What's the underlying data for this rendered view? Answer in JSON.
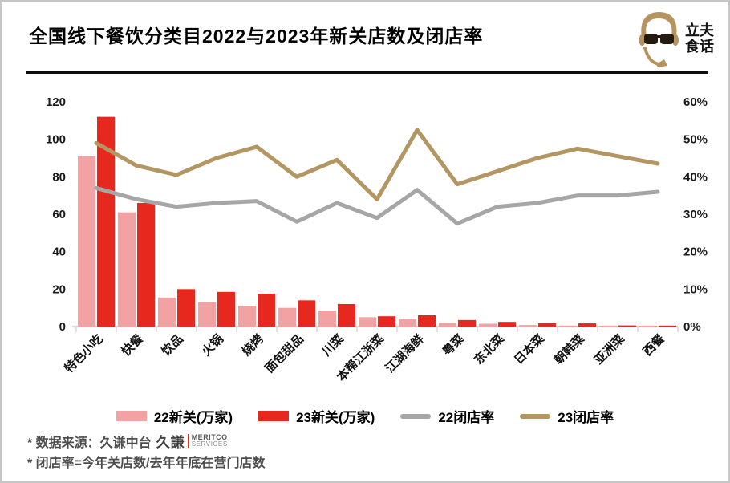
{
  "header": {
    "title": "全国线下餐饮分类目2022与2023年新关店数及闭店率",
    "logo": {
      "line1": "立夫",
      "line2": "食话",
      "color": "#b5945f"
    }
  },
  "chart_data": {
    "type": "bar+line combo",
    "title": "全国线下餐饮分类目2022与2023年新关店数及闭店率",
    "grid": false,
    "legend_position": "bottom",
    "categories": [
      "特色小吃",
      "快餐",
      "饮品",
      "火锅",
      "烧烤",
      "面包甜品",
      "川菜",
      "本帮江浙菜",
      "江湖海鲜",
      "粤菜",
      "东北菜",
      "日本菜",
      "朝韩菜",
      "亚洲菜",
      "西餐"
    ],
    "series": [
      {
        "name": "22新关(万家)",
        "type": "bar",
        "axis": "left",
        "color": "#f2a2a2",
        "values": [
          91,
          61,
          15.5,
          13,
          11,
          10,
          8.5,
          5,
          4,
          2,
          1.5,
          0.8,
          0.5,
          0.3,
          0.2
        ]
      },
      {
        "name": "23新关(万家)",
        "type": "bar",
        "axis": "left",
        "color": "#e6281e",
        "values": [
          112,
          66,
          20,
          18.5,
          17.5,
          14,
          12,
          5.5,
          6,
          3.5,
          2.5,
          1.8,
          1.7,
          0.6,
          0.5
        ]
      },
      {
        "name": "22闭店率",
        "type": "line",
        "axis": "right",
        "color": "#a6a6a6",
        "values": [
          37,
          34,
          32,
          33,
          33.5,
          28,
          33,
          29,
          36.5,
          27.5,
          32,
          33,
          35,
          35,
          36
        ]
      },
      {
        "name": "23闭店率",
        "type": "line",
        "axis": "right",
        "color": "#b39662",
        "values": [
          49,
          43,
          40.5,
          45,
          48,
          40,
          44.5,
          34,
          52.5,
          38,
          41.5,
          45,
          47.5,
          45.5,
          43.5
        ]
      }
    ],
    "left_axis": {
      "min": 0,
      "max": 120,
      "step": 20,
      "ticks": [
        "0",
        "20",
        "40",
        "60",
        "80",
        "100",
        "120"
      ]
    },
    "right_axis": {
      "min": 0,
      "max": 60,
      "step": 10,
      "ticks": [
        "0%",
        "10%",
        "20%",
        "30%",
        "40%",
        "50%",
        "60%"
      ]
    },
    "axis_color": "#d9d9d9",
    "tick_text_color": "#1a1a1a"
  },
  "footer": {
    "line1_prefix": "* 数据来源：久谦中台",
    "meritco": {
      "cjk": "久謙",
      "divider_color": "#e0301e",
      "name": "MERITCO",
      "sub": "SERVICES"
    },
    "line2": "* 闭店率=今年关店数/去年年底在营门店数"
  }
}
